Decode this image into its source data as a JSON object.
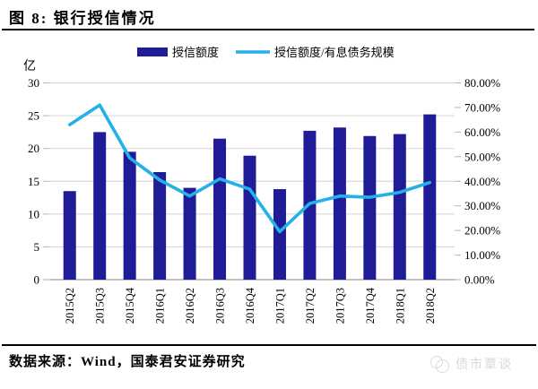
{
  "figure": {
    "title": "图 8: 银行授信情况"
  },
  "chart_data": {
    "type": "bar+line combo",
    "categories": [
      "2015Q2",
      "2015Q3",
      "2015Q4",
      "2016Q1",
      "2016Q2",
      "2016Q3",
      "2016Q4",
      "2017Q1",
      "2017Q2",
      "2017Q3",
      "2017Q4",
      "2018Q1",
      "2018Q2"
    ],
    "series": [
      {
        "name": "授信额度",
        "type": "bar",
        "axis": "left",
        "unit": "亿",
        "color": "#201b96",
        "values": [
          13.5,
          22.5,
          19.5,
          16.4,
          14.0,
          21.5,
          18.9,
          13.8,
          22.7,
          23.2,
          21.9,
          22.2,
          25.2
        ]
      },
      {
        "name": "授信额度/有息债务规模",
        "type": "line",
        "axis": "right",
        "unit": "%",
        "color": "#25b0e8",
        "values": [
          63.0,
          71.0,
          49.5,
          40.5,
          34.0,
          41.0,
          36.8,
          19.5,
          31.0,
          34.0,
          33.5,
          35.5,
          39.5
        ]
      }
    ],
    "left_axis": {
      "label": "亿",
      "min": 0,
      "max": 30,
      "step": 5,
      "ticks": [
        "0",
        "5",
        "10",
        "15",
        "20",
        "25",
        "30"
      ]
    },
    "right_axis": {
      "min": 0,
      "max": 80,
      "step": 10,
      "ticks": [
        "0.00%",
        "10.00%",
        "20.00%",
        "30.00%",
        "40.00%",
        "50.00%",
        "60.00%",
        "70.00%",
        "80.00%"
      ]
    },
    "legend_position": "top-center",
    "grid": true,
    "grid_color": "#d9d9d9",
    "axis_line_color": "#9c9c9c"
  },
  "footer": {
    "source": "数据来源：Wind，国泰君安证券研究",
    "watermark": "债市覃谈"
  }
}
